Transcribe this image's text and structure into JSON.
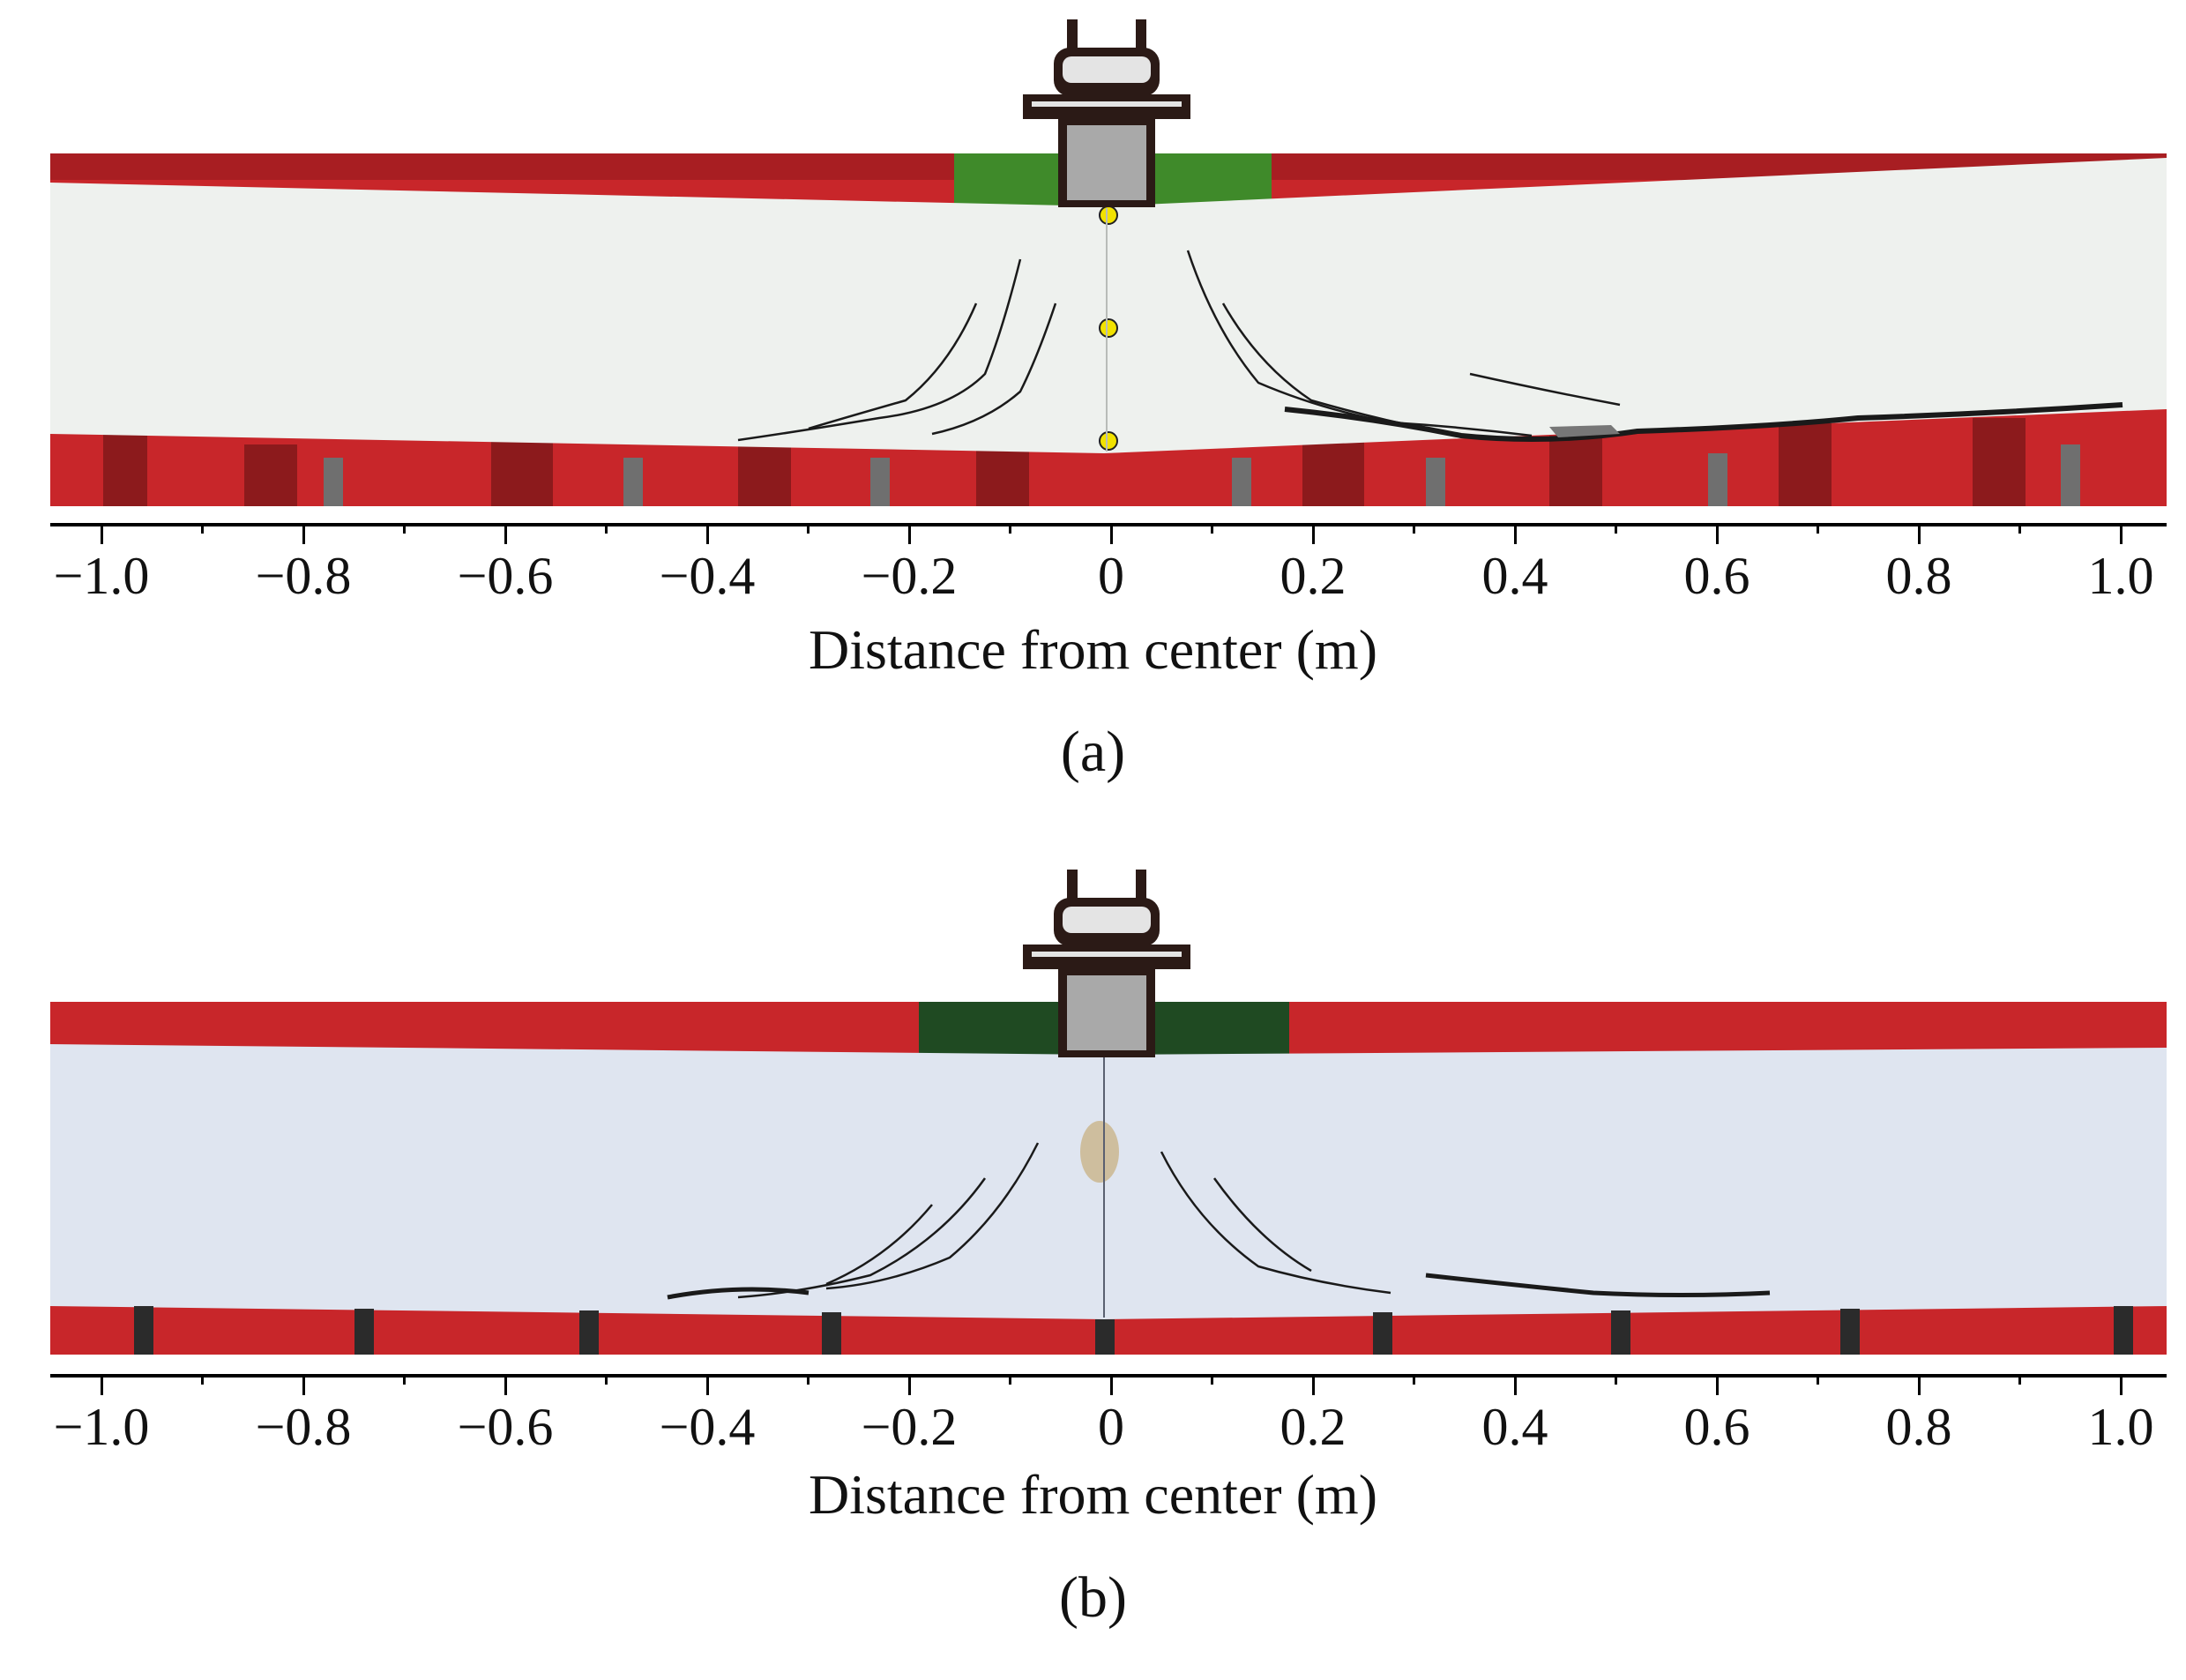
{
  "figure": {
    "panels": [
      {
        "label": "(a)",
        "x_label": "Distance from center (m)",
        "ticks": [
          "−1.0",
          "−0.8",
          "−0.6",
          "−0.4",
          "−0.2",
          "0",
          "0.2",
          "0.4",
          "0.6",
          "0.8",
          "1.0"
        ]
      },
      {
        "label": "(b)",
        "x_label": "Distance from center (m)",
        "ticks": [
          "−1.0",
          "−0.8",
          "−0.6",
          "−0.4",
          "−0.2",
          "0",
          "0.2",
          "0.4",
          "0.6",
          "0.8",
          "1.0"
        ]
      }
    ],
    "colors": {
      "frame_red": "#c8262a",
      "beam_a": "#eef1ee",
      "beam_b": "#dfe5f0",
      "steel_green": "#3f8a2a",
      "crack": "#1a1a1a",
      "actuator_gray": "#a9a9a9",
      "actuator_dark": "#2b1a16"
    }
  }
}
